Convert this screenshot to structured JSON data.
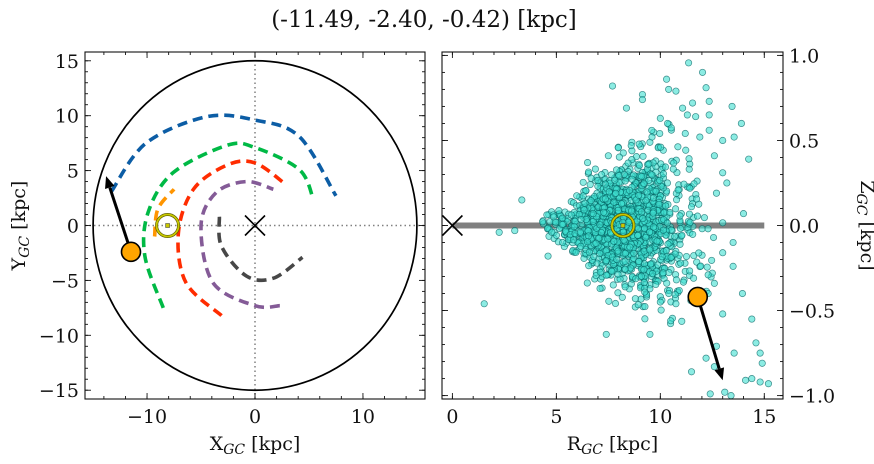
{
  "title": "(-11.49, -2.40, -0.42) [kpc]",
  "chart_data": [
    {
      "type": "line",
      "xlabel": {
        "main": "X",
        "sub": "GC",
        "unit": " [kpc]"
      },
      "ylabel": {
        "main": "Y",
        "sub": "GC",
        "unit": " [kpc]"
      },
      "xlim": [
        -15.75,
        15.75
      ],
      "ylim": [
        -15.8,
        15.8
      ],
      "xticks": [
        -10,
        0,
        10
      ],
      "xtick_labels": [
        "−10",
        "0",
        "10"
      ],
      "yticks": [
        -15,
        -10,
        -5,
        0,
        5,
        10,
        15
      ],
      "ytick_labels": [
        "−15",
        "−10",
        "−5",
        "0",
        "5",
        "10",
        "15"
      ],
      "grid": false,
      "boundary_circle_radius": 15,
      "reference_lines": {
        "x": 0,
        "y": 0,
        "style": "dotted",
        "color": "#808080"
      },
      "galactic_center": {
        "x": 0,
        "y": 0,
        "marker": "x"
      },
      "sun": {
        "x": -8.1,
        "y": 0,
        "color": "#c8c800"
      },
      "target": {
        "x": -11.49,
        "y": -2.4,
        "color": "#FFA500"
      },
      "arrow_to": {
        "x": -13.8,
        "y": 4.5
      },
      "series": [
        {
          "color": "#0C5DA5",
          "points": [
            [
              -13.3,
              3.1
            ],
            [
              -10.1,
              7.5
            ],
            [
              -4.5,
              9.9
            ],
            [
              0,
              9.6
            ],
            [
              4.1,
              8.1
            ],
            [
              7.5,
              2.7
            ]
          ]
        },
        {
          "color": "#00B945",
          "points": [
            [
              -8.5,
              -7.5
            ],
            [
              -10.2,
              -2.8
            ],
            [
              -9.9,
              1.2
            ],
            [
              -7.6,
              4.8
            ],
            [
              -2.6,
              7.3
            ],
            [
              0,
              7.1
            ],
            [
              4.1,
              5.1
            ],
            [
              5.4,
              2.4
            ]
          ]
        },
        {
          "color": "#FF9500",
          "points": [
            [
              -9.3,
              -1.0
            ],
            [
              -9.0,
              1.5
            ],
            [
              -7.5,
              3.3
            ]
          ]
        },
        {
          "color": "#FF2C00",
          "points": [
            [
              -3.1,
              -8.2
            ],
            [
              -6.4,
              -5.2
            ],
            [
              -7.1,
              -0.7
            ],
            [
              -5.7,
              3.3
            ],
            [
              -2.6,
              5.5
            ],
            [
              0,
              5.7
            ],
            [
              2.9,
              3.7
            ]
          ]
        },
        {
          "color": "#845B97",
          "points": [
            [
              2.3,
              -7.3
            ],
            [
              0,
              -7.3
            ],
            [
              -3.9,
              -5.2
            ],
            [
              -5.0,
              0
            ],
            [
              -3.6,
              3.0
            ],
            [
              -0.8,
              4.0
            ],
            [
              1.7,
              3.3
            ]
          ]
        },
        {
          "color": "#474747",
          "points": [
            [
              -3.3,
              0.8
            ],
            [
              -3.1,
              -1.9
            ],
            [
              -0.8,
              -4.6
            ],
            [
              1.7,
              -4.8
            ],
            [
              4.4,
              -2.9
            ]
          ]
        }
      ]
    },
    {
      "type": "scatter",
      "xlabel": {
        "main": "R",
        "sub": "GC",
        "unit": " [kpc]"
      },
      "ylabel": {
        "main": "Z",
        "sub": "GC",
        "unit": " [kpc]"
      },
      "xlim": [
        -0.5,
        15.9
      ],
      "ylim": [
        -1.02,
        1.02
      ],
      "xticks": [
        0,
        5,
        10,
        15
      ],
      "xtick_labels": [
        "0",
        "5",
        "10",
        "15"
      ],
      "yticks": [
        -1.0,
        -0.5,
        0.0,
        0.5,
        1.0
      ],
      "ytick_labels": [
        "−1.0",
        "−0.5",
        "0.0",
        "0.5",
        "1.0"
      ],
      "yaxis_side": "right",
      "grid": false,
      "disk_line": {
        "x": [
          0,
          15
        ],
        "y": 0,
        "color": "#808080"
      },
      "galactic_center": {
        "x": 0,
        "y": 0,
        "marker": "x"
      },
      "sun": {
        "x": 8.2,
        "y": 0,
        "color": "#c8c800"
      },
      "target": {
        "x": 11.8,
        "y": -0.42,
        "color": "#FFA500"
      },
      "arrow_to": {
        "x": 13.0,
        "y": -0.91
      },
      "point_color": "#40E0D0",
      "edge_color": "#005f5f",
      "points": [
        [
          11.36,
          0.956
        ],
        [
          12.03,
          0.9
        ],
        [
          10.3,
          0.86
        ],
        [
          7.7,
          0.82
        ],
        [
          9.14,
          0.77
        ],
        [
          10.75,
          0.79
        ],
        [
          12.2,
          0.81
        ],
        [
          13.45,
          0.7
        ],
        [
          8.37,
          0.69
        ],
        [
          13.9,
          0.6
        ],
        [
          14.25,
          0.39
        ],
        [
          6.5,
          0.37
        ],
        [
          3.34,
          0.15
        ],
        [
          2.25,
          -0.04
        ],
        [
          3.0,
          -0.03
        ],
        [
          1.53,
          -0.46
        ],
        [
          4.6,
          -0.18
        ],
        [
          7.4,
          -0.64
        ],
        [
          9.5,
          -0.64
        ],
        [
          8.8,
          -0.43
        ],
        [
          10.5,
          -0.56
        ],
        [
          14.4,
          -0.55
        ],
        [
          14.6,
          -0.69
        ],
        [
          13.55,
          -0.75
        ],
        [
          14.8,
          -0.75
        ],
        [
          14.9,
          -0.81
        ],
        [
          14.1,
          -0.91
        ],
        [
          14.4,
          -0.9
        ],
        [
          14.8,
          -0.92
        ],
        [
          15.2,
          -0.93
        ],
        [
          13.1,
          -0.98
        ],
        [
          12.4,
          -0.99
        ],
        [
          13.4,
          -1.0
        ],
        [
          11.5,
          -0.86
        ],
        [
          12.6,
          -0.83
        ],
        [
          12.2,
          -0.78
        ],
        [
          12.7,
          -0.71
        ],
        [
          13.0,
          -0.52
        ],
        [
          13.95,
          -0.4
        ],
        [
          13.5,
          -0.1
        ],
        [
          14.0,
          0.07
        ],
        [
          13.2,
          0.25
        ],
        [
          13.55,
          0.52
        ],
        [
          10.0,
          0.63
        ],
        [
          8.6,
          0.47
        ],
        [
          7.5,
          0.41
        ],
        [
          11.9,
          0.52
        ],
        [
          12.35,
          0.65
        ],
        [
          11.7,
          0.64
        ],
        [
          11.3,
          0.65
        ],
        [
          10.4,
          0.8
        ],
        [
          12.35,
          0.73
        ],
        [
          11.55,
          0.72
        ],
        [
          11.07,
          0.69
        ],
        [
          9.14,
          0.74
        ],
        [
          10.35,
          0.6
        ],
        [
          9.6,
          0.52
        ],
        [
          12.35,
          0.56
        ],
        [
          13.0,
          0.5
        ],
        [
          12.6,
          0.41
        ],
        [
          13.0,
          0.31
        ],
        [
          12.7,
          0.19
        ],
        [
          13.0,
          0.016
        ],
        [
          13.0,
          -0.16
        ],
        [
          13.5,
          -0.24
        ],
        [
          12.5,
          -0.28
        ],
        [
          12.3,
          -0.29
        ],
        [
          11.6,
          -0.31
        ],
        [
          12.6,
          -0.34
        ],
        [
          12.3,
          -0.4
        ],
        [
          10.75,
          -0.46
        ],
        [
          10.0,
          -0.45
        ]
      ]
    }
  ]
}
